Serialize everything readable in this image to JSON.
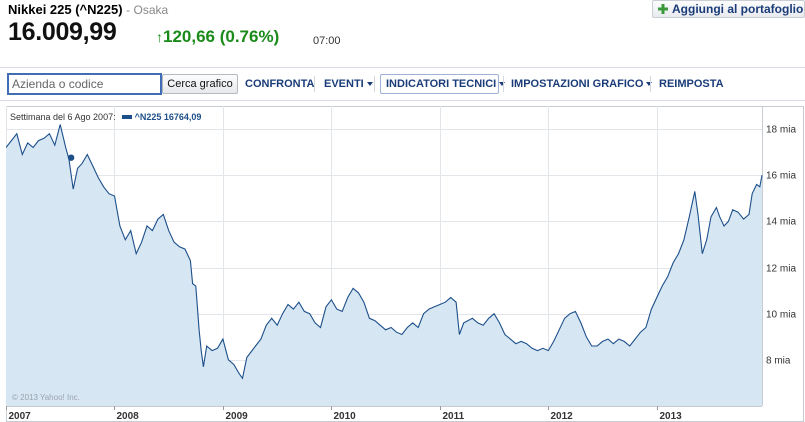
{
  "quote": {
    "title": "Nikkei 225 (^N225)",
    "exchange": "- Osaka",
    "price": "16.009,99",
    "change": "120,66 (0.76%)",
    "time": "07:00",
    "add_portfolio": "Aggiungi al portafoglio"
  },
  "toolbar": {
    "search_placeholder": "Azienda o codice",
    "search_button": "Cerca grafico",
    "compare": "CONFRONTA",
    "events": "EVENTI",
    "indicators": "INDICATORI TECNICI",
    "settings": "IMPOSTAZIONI GRAFICO",
    "reset": "REIMPOSTA"
  },
  "legend": {
    "week": "Settimana del 6 Ago 2007:",
    "series": "^N225 16764,09"
  },
  "copyright": "© 2013 Yahoo! Inc.",
  "colors": {
    "line": "#1d4f8a",
    "fill": "#d6e6f2",
    "up": "#1a8a1a",
    "link": "#1a3c78"
  },
  "chart_data": {
    "type": "area",
    "x_ticks": [
      "2007",
      "2008",
      "2009",
      "2010",
      "2011",
      "2012",
      "2013"
    ],
    "y_ticks": [
      "18 mia",
      "16 mia",
      "14 mia",
      "12 mia",
      "10 mia",
      "8 mia"
    ],
    "ylim": [
      6.0,
      19.0
    ],
    "xlim": [
      2007.0,
      2013.97
    ],
    "marker": {
      "x": 2007.6,
      "y": 16.76
    },
    "points": [
      [
        2007.0,
        17.2
      ],
      [
        2007.05,
        17.5
      ],
      [
        2007.1,
        17.8
      ],
      [
        2007.15,
        16.9
      ],
      [
        2007.2,
        17.4
      ],
      [
        2007.25,
        17.2
      ],
      [
        2007.3,
        17.5
      ],
      [
        2007.35,
        17.6
      ],
      [
        2007.4,
        17.8
      ],
      [
        2007.45,
        17.3
      ],
      [
        2007.5,
        18.2
      ],
      [
        2007.55,
        17.2
      ],
      [
        2007.58,
        16.7
      ],
      [
        2007.62,
        15.4
      ],
      [
        2007.66,
        16.3
      ],
      [
        2007.7,
        16.5
      ],
      [
        2007.75,
        16.9
      ],
      [
        2007.8,
        16.4
      ],
      [
        2007.85,
        15.9
      ],
      [
        2007.9,
        15.5
      ],
      [
        2007.95,
        15.2
      ],
      [
        2008.0,
        15.1
      ],
      [
        2008.05,
        13.8
      ],
      [
        2008.1,
        13.2
      ],
      [
        2008.15,
        13.6
      ],
      [
        2008.2,
        12.6
      ],
      [
        2008.25,
        13.1
      ],
      [
        2008.3,
        13.8
      ],
      [
        2008.35,
        13.6
      ],
      [
        2008.4,
        14.1
      ],
      [
        2008.45,
        14.3
      ],
      [
        2008.5,
        13.6
      ],
      [
        2008.55,
        13.1
      ],
      [
        2008.6,
        12.9
      ],
      [
        2008.65,
        12.8
      ],
      [
        2008.7,
        12.3
      ],
      [
        2008.72,
        11.3
      ],
      [
        2008.75,
        11.2
      ],
      [
        2008.78,
        9.3
      ],
      [
        2008.8,
        8.4
      ],
      [
        2008.82,
        7.7
      ],
      [
        2008.85,
        8.6
      ],
      [
        2008.9,
        8.4
      ],
      [
        2008.95,
        8.5
      ],
      [
        2009.0,
        8.9
      ],
      [
        2009.05,
        8.0
      ],
      [
        2009.1,
        7.8
      ],
      [
        2009.15,
        7.4
      ],
      [
        2009.18,
        7.2
      ],
      [
        2009.22,
        8.1
      ],
      [
        2009.3,
        8.6
      ],
      [
        2009.35,
        8.9
      ],
      [
        2009.4,
        9.5
      ],
      [
        2009.45,
        9.8
      ],
      [
        2009.5,
        9.5
      ],
      [
        2009.55,
        10.0
      ],
      [
        2009.6,
        10.4
      ],
      [
        2009.65,
        10.2
      ],
      [
        2009.7,
        10.5
      ],
      [
        2009.75,
        10.1
      ],
      [
        2009.8,
        10.0
      ],
      [
        2009.85,
        9.6
      ],
      [
        2009.9,
        9.4
      ],
      [
        2009.95,
        10.3
      ],
      [
        2010.0,
        10.6
      ],
      [
        2010.05,
        10.2
      ],
      [
        2010.1,
        10.1
      ],
      [
        2010.15,
        10.7
      ],
      [
        2010.2,
        11.1
      ],
      [
        2010.25,
        10.9
      ],
      [
        2010.3,
        10.5
      ],
      [
        2010.35,
        9.8
      ],
      [
        2010.4,
        9.7
      ],
      [
        2010.45,
        9.5
      ],
      [
        2010.5,
        9.3
      ],
      [
        2010.55,
        9.4
      ],
      [
        2010.6,
        9.2
      ],
      [
        2010.65,
        9.1
      ],
      [
        2010.7,
        9.4
      ],
      [
        2010.75,
        9.6
      ],
      [
        2010.8,
        9.4
      ],
      [
        2010.85,
        10.0
      ],
      [
        2010.9,
        10.2
      ],
      [
        2010.95,
        10.3
      ],
      [
        2011.0,
        10.4
      ],
      [
        2011.05,
        10.5
      ],
      [
        2011.1,
        10.7
      ],
      [
        2011.15,
        10.5
      ],
      [
        2011.18,
        9.1
      ],
      [
        2011.22,
        9.6
      ],
      [
        2011.3,
        9.8
      ],
      [
        2011.35,
        9.6
      ],
      [
        2011.4,
        9.5
      ],
      [
        2011.45,
        9.8
      ],
      [
        2011.5,
        10.0
      ],
      [
        2011.55,
        9.6
      ],
      [
        2011.6,
        9.1
      ],
      [
        2011.65,
        8.9
      ],
      [
        2011.7,
        8.7
      ],
      [
        2011.75,
        8.8
      ],
      [
        2011.8,
        8.7
      ],
      [
        2011.85,
        8.5
      ],
      [
        2011.9,
        8.4
      ],
      [
        2011.95,
        8.5
      ],
      [
        2012.0,
        8.4
      ],
      [
        2012.05,
        8.8
      ],
      [
        2012.1,
        9.3
      ],
      [
        2012.15,
        9.8
      ],
      [
        2012.2,
        10.0
      ],
      [
        2012.25,
        10.1
      ],
      [
        2012.3,
        9.6
      ],
      [
        2012.35,
        9.0
      ],
      [
        2012.4,
        8.6
      ],
      [
        2012.45,
        8.6
      ],
      [
        2012.5,
        8.8
      ],
      [
        2012.55,
        8.9
      ],
      [
        2012.6,
        8.7
      ],
      [
        2012.65,
        8.9
      ],
      [
        2012.7,
        8.8
      ],
      [
        2012.75,
        8.6
      ],
      [
        2012.8,
        8.9
      ],
      [
        2012.85,
        9.2
      ],
      [
        2012.9,
        9.4
      ],
      [
        2012.95,
        10.2
      ],
      [
        2013.0,
        10.7
      ],
      [
        2013.05,
        11.2
      ],
      [
        2013.1,
        11.6
      ],
      [
        2013.15,
        12.2
      ],
      [
        2013.2,
        12.6
      ],
      [
        2013.25,
        13.2
      ],
      [
        2013.3,
        14.2
      ],
      [
        2013.35,
        15.3
      ],
      [
        2013.38,
        14.3
      ],
      [
        2013.42,
        12.6
      ],
      [
        2013.46,
        13.2
      ],
      [
        2013.5,
        14.2
      ],
      [
        2013.55,
        14.6
      ],
      [
        2013.58,
        14.2
      ],
      [
        2013.62,
        13.8
      ],
      [
        2013.66,
        14.0
      ],
      [
        2013.7,
        14.5
      ],
      [
        2013.75,
        14.4
      ],
      [
        2013.8,
        14.1
      ],
      [
        2013.85,
        14.3
      ],
      [
        2013.88,
        15.2
      ],
      [
        2013.92,
        15.6
      ],
      [
        2013.95,
        15.5
      ],
      [
        2013.97,
        16.0
      ]
    ]
  }
}
